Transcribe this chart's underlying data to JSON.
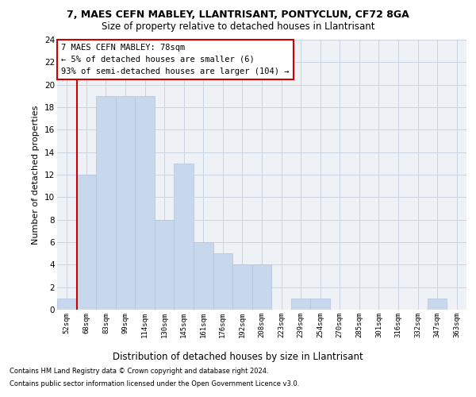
{
  "title1": "7, MAES CEFN MABLEY, LLANTRISANT, PONTYCLUN, CF72 8GA",
  "title2": "Size of property relative to detached houses in Llantrisant",
  "xlabel": "Distribution of detached houses by size in Llantrisant",
  "ylabel": "Number of detached properties",
  "categories": [
    "52sqm",
    "68sqm",
    "83sqm",
    "99sqm",
    "114sqm",
    "130sqm",
    "145sqm",
    "161sqm",
    "176sqm",
    "192sqm",
    "208sqm",
    "223sqm",
    "239sqm",
    "254sqm",
    "270sqm",
    "285sqm",
    "301sqm",
    "316sqm",
    "332sqm",
    "347sqm",
    "363sqm"
  ],
  "values": [
    1,
    12,
    19,
    19,
    19,
    8,
    13,
    6,
    5,
    4,
    4,
    0,
    1,
    1,
    0,
    0,
    0,
    0,
    0,
    1,
    0
  ],
  "bar_color": "#c8d8ec",
  "bar_edge_color": "#b0c4de",
  "vline_color": "#cc0000",
  "vline_pos": 0.575,
  "annotation_box_text": "7 MAES CEFN MABLEY: 78sqm\n← 5% of detached houses are smaller (6)\n93% of semi-detached houses are larger (104) →",
  "annotation_box_color": "#cc0000",
  "annotation_text_color": "#000000",
  "ylim": [
    0,
    24
  ],
  "yticks": [
    0,
    2,
    4,
    6,
    8,
    10,
    12,
    14,
    16,
    18,
    20,
    22,
    24
  ],
  "footnote1": "Contains HM Land Registry data © Crown copyright and database right 2024.",
  "footnote2": "Contains public sector information licensed under the Open Government Licence v3.0.",
  "bg_color": "#eef2f7",
  "grid_color": "#c8d4e0"
}
